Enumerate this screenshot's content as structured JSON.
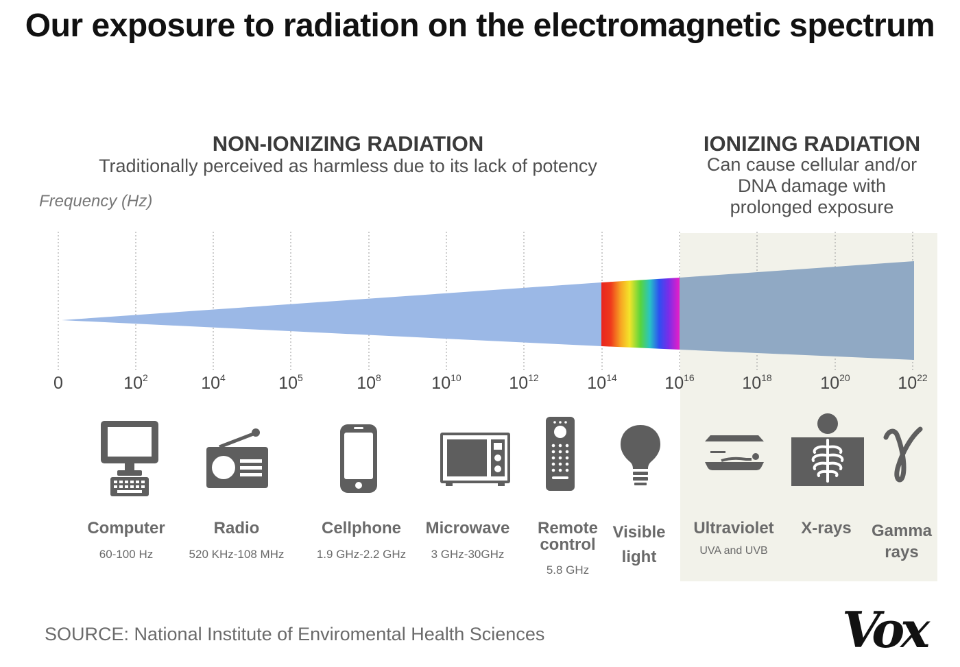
{
  "title": "Our exposure to radiation on the electromagnetic spectrum",
  "non_ionizing": {
    "heading": "NON-IONIZING RADIATION",
    "subtitle": "Traditionally perceived as harmless due to its lack of potency"
  },
  "ionizing": {
    "heading": "IONIZING RADIATION",
    "subtitle_lines": [
      "Can cause cellular and/or",
      "DNA damage with",
      "prolonged exposure"
    ]
  },
  "axis_label": "Frequency (Hz)",
  "ticks": [
    {
      "base": "0",
      "exp": ""
    },
    {
      "base": "10",
      "exp": "2"
    },
    {
      "base": "10",
      "exp": "4"
    },
    {
      "base": "10",
      "exp": "5"
    },
    {
      "base": "10",
      "exp": "8"
    },
    {
      "base": "10",
      "exp": "10"
    },
    {
      "base": "10",
      "exp": "12"
    },
    {
      "base": "10",
      "exp": "14"
    },
    {
      "base": "10",
      "exp": "16"
    },
    {
      "base": "10",
      "exp": "18"
    },
    {
      "base": "10",
      "exp": "20"
    },
    {
      "base": "10",
      "exp": "22"
    }
  ],
  "items": [
    {
      "name": "Computer",
      "range": "60-100 Hz",
      "icon": "computer-icon"
    },
    {
      "name": "Radio",
      "range": "520 KHz-108 MHz",
      "icon": "radio-icon"
    },
    {
      "name": "Cellphone",
      "range": "1.9 GHz-2.2 GHz",
      "icon": "cellphone-icon"
    },
    {
      "name": "Microwave",
      "range": "3 GHz-30GHz",
      "icon": "microwave-icon"
    },
    {
      "name_lines": [
        "Remote",
        "control"
      ],
      "range": "5.8 GHz",
      "icon": "remote-control-icon"
    },
    {
      "name_lines": [
        "Visible",
        "light"
      ],
      "range": "",
      "icon": "light-bulb-icon"
    },
    {
      "name": "Ultraviolet",
      "range": "UVA and UVB",
      "icon": "tanning-bed-icon"
    },
    {
      "name": "X-rays",
      "range": "",
      "icon": "xray-icon"
    },
    {
      "name_lines": [
        "Gamma",
        "rays"
      ],
      "range": "",
      "icon": "gamma-icon"
    }
  ],
  "source": "SOURCE: National Institute of Enviromental Health Sciences",
  "logo_text": "Vox",
  "colors": {
    "non_ionizing_band": "#9bb8e6",
    "ionizing_band": "#90a9c4",
    "ionizing_background": "#f2f2ea",
    "icon_gray": "#5e5e5e"
  }
}
